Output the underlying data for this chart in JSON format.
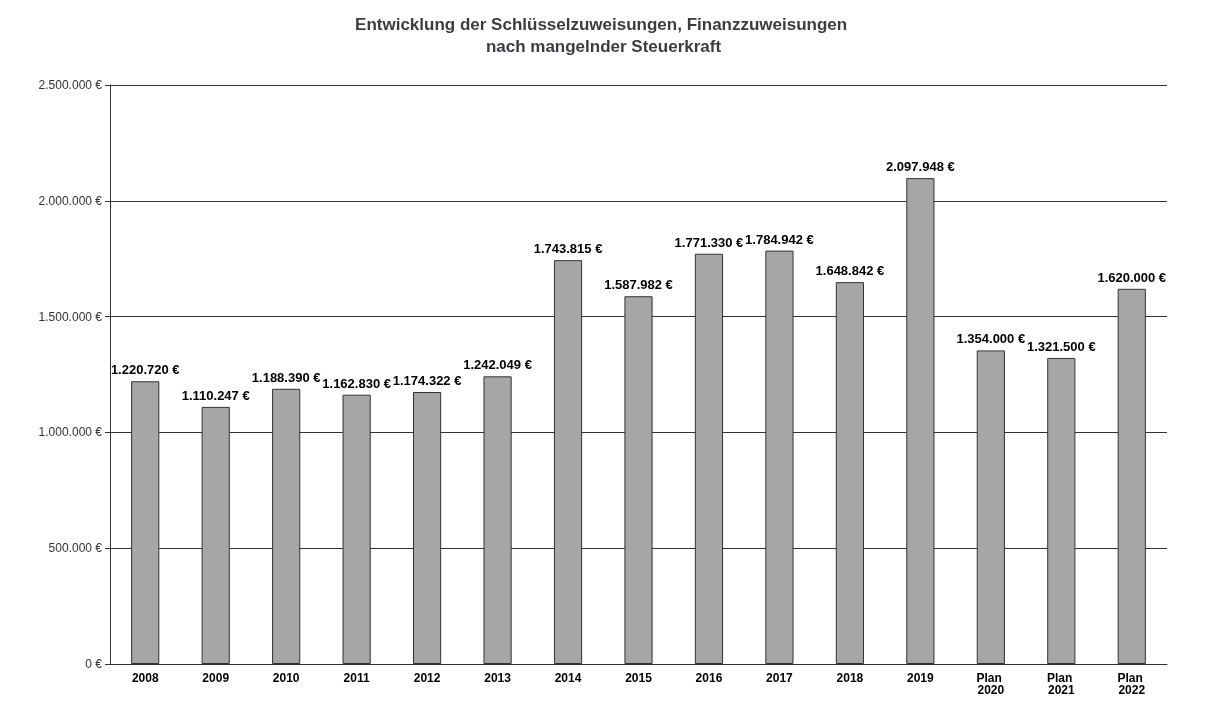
{
  "chart_data": {
    "type": "bar",
    "title": "Entwicklung der Schlüsselzuweisungen, Finanzzuweisungen nach mangelnder Steuerkraft",
    "categories": [
      "2008",
      "2009",
      "2010",
      "2011",
      "2012",
      "2013",
      "2014",
      "2015",
      "2016",
      "2017",
      "2018",
      "2019",
      "Plan 2020",
      "Plan 2021",
      "Plan 2022"
    ],
    "values": [
      1220720,
      1110247,
      1188390,
      1162830,
      1174322,
      1242049,
      1743815,
      1587982,
      1771330,
      1784942,
      1648842,
      2097948,
      1354000,
      1321500,
      1620000
    ],
    "value_labels": [
      "1.220.720 €",
      "1.110.247 €",
      "1.188.390 €",
      "1.162.830 €",
      "1.174.322 €",
      "1.242.049 €",
      "1.743.815 €",
      "1.587.982 €",
      "1.771.330 €",
      "1.784.942 €",
      "1.648.842 €",
      "2.097.948 €",
      "1.354.000 €",
      "1.321.500 €",
      "1.620.000 €"
    ],
    "color": "#a6a6a6",
    "ylim": [
      0,
      2500000
    ],
    "yticks": [
      {
        "value": 0,
        "label": "0 €"
      },
      {
        "value": 500000,
        "label": "500.000 €"
      },
      {
        "value": 1000000,
        "label": "1.000.000 €"
      },
      {
        "value": 1500000,
        "label": "1.500.000 €"
      },
      {
        "value": 2000000,
        "label": "2.000.000 €"
      },
      {
        "value": 2500000,
        "label": "2.500.000 €"
      }
    ],
    "grid": "y"
  }
}
